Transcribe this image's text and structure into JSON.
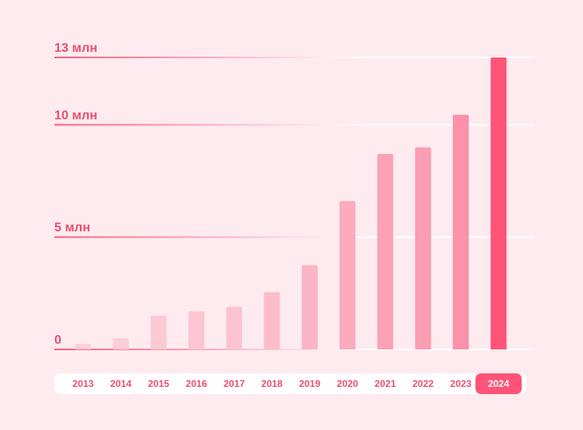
{
  "chart_data": {
    "type": "bar",
    "title": "",
    "xlabel": "",
    "ylabel": "",
    "categories": [
      "2013",
      "2014",
      "2015",
      "2016",
      "2017",
      "2018",
      "2019",
      "2020",
      "2021",
      "2022",
      "2023",
      "2024"
    ],
    "values": [
      0.25,
      0.5,
      1.5,
      1.7,
      1.9,
      2.55,
      3.75,
      6.6,
      8.7,
      9.0,
      10.45,
      13.0
    ],
    "ylim": [
      0,
      13
    ],
    "y_ticks": [
      {
        "value": 0,
        "label": "0"
      },
      {
        "value": 5,
        "label": "5 млн"
      },
      {
        "value": 10,
        "label": "10 млн"
      },
      {
        "value": 13,
        "label": "13 млн"
      }
    ],
    "highlighted_category": "2024",
    "grid": true
  },
  "colors": {
    "background": "#fdebef",
    "accent": "#ff5478",
    "label_text": "#e8506f",
    "axis_strip": "#ffffff",
    "gridline_light": "#ffffff",
    "bar_palette": [
      "#fdd0d9",
      "#fdced8",
      "#fdc9d4",
      "#fdc6d2",
      "#fcc2cf",
      "#fcbccb",
      "#fcb5c6",
      "#fcaabd",
      "#fca1b6",
      "#fb9db3",
      "#fb92aa",
      "#ff5478"
    ]
  }
}
